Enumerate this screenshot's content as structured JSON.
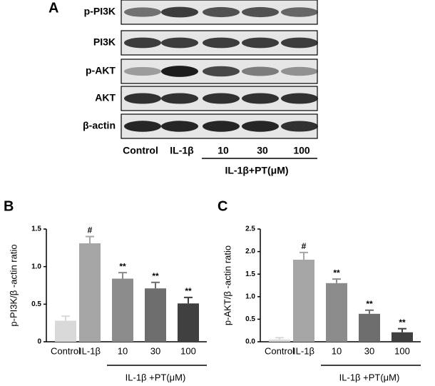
{
  "blot": {
    "panel_label": "A",
    "rows": [
      "p-PI3K",
      "PI3K",
      "p-AKT",
      "AKT",
      "β-actin"
    ],
    "lanes": [
      "Control",
      "IL-1β",
      "10",
      "30",
      "100"
    ],
    "group_label": "IL-1β+PT(μM)"
  },
  "chart_data": [
    {
      "type": "bar",
      "panel_label": "B",
      "y_label": "p-PI3K/β -actin ratio",
      "categories": [
        "Control",
        "IL-1β",
        "10",
        "30",
        "100"
      ],
      "values": [
        0.28,
        1.31,
        0.84,
        0.71,
        0.51
      ],
      "errors": [
        0.06,
        0.09,
        0.08,
        0.08,
        0.08
      ],
      "colors": [
        "#d9d9d9",
        "#a6a6a6",
        "#8c8c8c",
        "#6e6e6e",
        "#404040"
      ],
      "annotations": [
        null,
        "#",
        "**",
        "**",
        "**"
      ],
      "group_label": "IL-1β +PT(μM)",
      "ylim": [
        0,
        1.5
      ],
      "yticks": [
        0,
        0.5,
        {
          "value": 1,
          "label": "1.0"
        },
        1.5
      ]
    },
    {
      "type": "bar",
      "panel_label": "C",
      "y_label": "p-AKT/β -actin ratio",
      "categories": [
        "Control",
        "IL-1β",
        "10",
        "30",
        "100"
      ],
      "values": [
        0.05,
        1.82,
        1.3,
        0.62,
        0.21
      ],
      "errors": [
        0.04,
        0.16,
        0.09,
        0.08,
        0.08
      ],
      "colors": [
        "#d9d9d9",
        "#a6a6a6",
        "#8c8c8c",
        "#6e6e6e",
        "#404040"
      ],
      "annotations": [
        null,
        "#",
        "**",
        "**",
        "**"
      ],
      "group_label": "IL-1β +PT(μM)",
      "ylim": [
        0,
        2.5
      ],
      "yticks": [
        {
          "value": 0,
          "label": "0.0"
        },
        0.5,
        {
          "value": 1,
          "label": "1.0"
        },
        1.5,
        {
          "value": 2,
          "label": "2.0"
        },
        2.5
      ]
    }
  ]
}
